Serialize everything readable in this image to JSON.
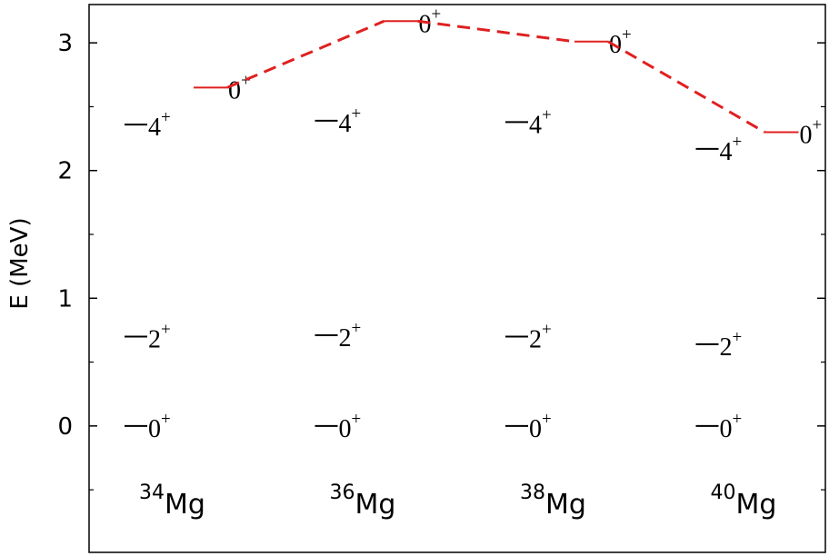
{
  "chart_data": {
    "type": "level-scheme",
    "y_label": "E (MeV)",
    "element": "Mg",
    "categories": [
      "34",
      "36",
      "38",
      "40"
    ],
    "ylim": [
      -0.99,
      3.3
    ],
    "yticks": [
      0,
      1,
      2,
      3
    ],
    "minor_yticks": [
      -0.5,
      0.5,
      1.5,
      2.5
    ],
    "levels": [
      {
        "spin": "0",
        "parity": "+",
        "color": "#000000",
        "values": [
          0,
          0,
          0,
          0
        ]
      },
      {
        "spin": "2",
        "parity": "+",
        "color": "#000000",
        "values": [
          0.7,
          0.71,
          0.7,
          0.64
        ]
      },
      {
        "spin": "4",
        "parity": "+",
        "color": "#000000",
        "values": [
          2.36,
          2.39,
          2.38,
          2.17
        ]
      },
      {
        "spin": "0",
        "parity": "+",
        "color": "#e02020",
        "connected": true,
        "values": [
          2.65,
          3.17,
          3.01,
          2.3
        ]
      }
    ]
  }
}
